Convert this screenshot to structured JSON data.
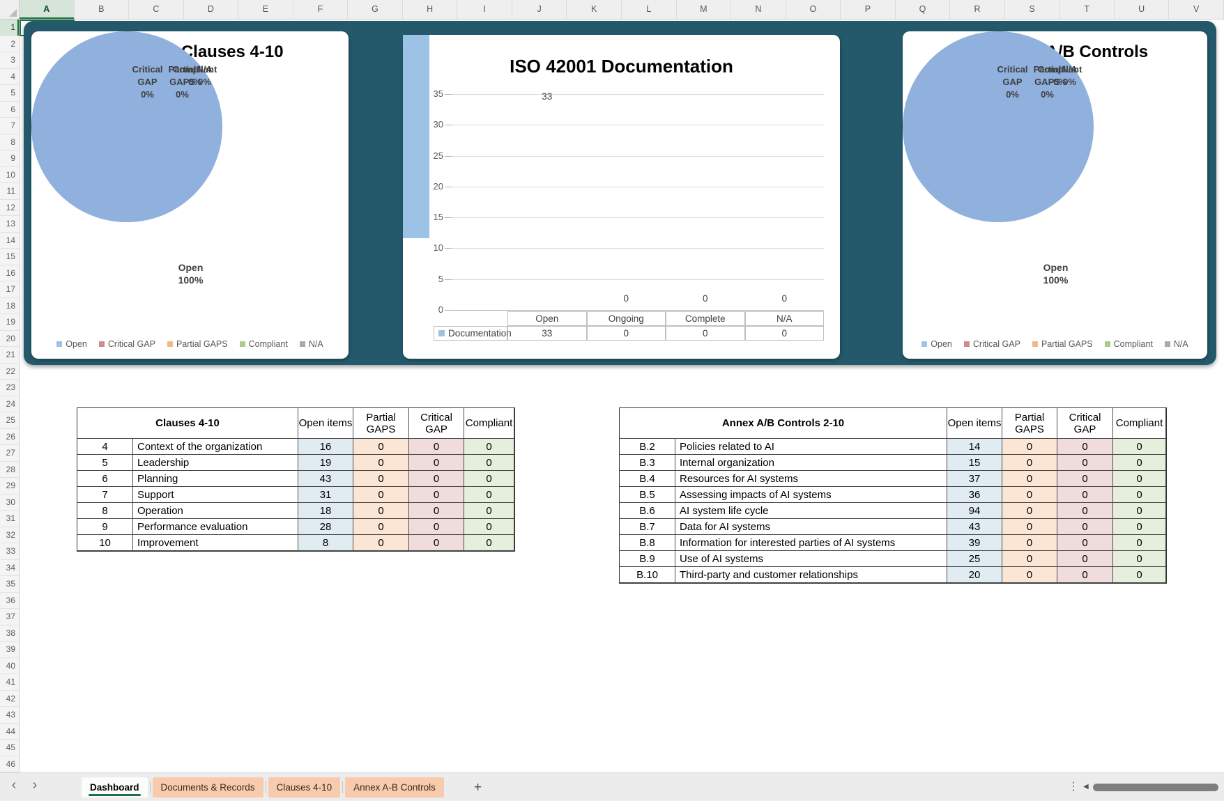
{
  "grid": {
    "column_letters": [
      "A",
      "B",
      "C",
      "D",
      "E",
      "F",
      "G",
      "H",
      "I",
      "J",
      "K",
      "L",
      "M",
      "N",
      "O",
      "P",
      "Q",
      "R",
      "S",
      "T",
      "U",
      "V"
    ],
    "visible_rows": 46,
    "selected_column": "A",
    "selected_row": "1",
    "selected_cell": "A1"
  },
  "chart_data": [
    {
      "type": "pie",
      "title": "ISO 42001 Clauses 4-10",
      "categories": [
        "Open",
        "Critical GAP",
        "Partial GAPS",
        "Compliant",
        "N/A"
      ],
      "values": [
        100,
        0,
        0,
        0,
        0
      ],
      "unit": "%",
      "legend_position": "bottom"
    },
    {
      "type": "bar",
      "title": "ISO 42001 Documentation",
      "categories": [
        "Open",
        "Ongoing",
        "Complete",
        "N/A"
      ],
      "series": [
        {
          "name": "Documentation",
          "values": [
            33,
            0,
            0,
            0
          ]
        }
      ],
      "ylim": [
        0,
        35
      ],
      "yticks": [
        0,
        5,
        10,
        15,
        20,
        25,
        30,
        35
      ],
      "grid": true,
      "show_data_table": true
    },
    {
      "type": "pie",
      "title": "ISO 42001 A/B Controls",
      "categories": [
        "Open",
        "Critical GAP",
        "Partial GAPS",
        "Compliant",
        "N/A"
      ],
      "values": [
        100,
        0,
        0,
        0,
        0
      ],
      "unit": "%",
      "legend_position": "bottom"
    }
  ],
  "pie_labels": {
    "critical": "Critical\nGAP\n0%",
    "partial": "Partial\nGAPS\n0%",
    "compliant": "Compliant\n0%",
    "na": "N/A\n0%",
    "open": "Open\n100%"
  },
  "legend": {
    "items": [
      {
        "label": "Open",
        "color": "#9DC3E6"
      },
      {
        "label": "Critical GAP",
        "color": "#D08C8C"
      },
      {
        "label": "Partial GAPS",
        "color": "#F0B985"
      },
      {
        "label": "Compliant",
        "color": "#AFC98A"
      },
      {
        "label": "N/A",
        "color": "#A9A9A9"
      }
    ]
  },
  "tables": {
    "clauses": {
      "title": "Clauses 4-10",
      "columns": [
        "Open items",
        "Partial GAPS",
        "Critical GAP",
        "Compliant"
      ],
      "rows": [
        [
          "4",
          "Context of the organization",
          "16",
          "0",
          "0",
          "0"
        ],
        [
          "5",
          "Leadership",
          "19",
          "0",
          "0",
          "0"
        ],
        [
          "6",
          "Planning",
          "43",
          "0",
          "0",
          "0"
        ],
        [
          "7",
          "Support",
          "31",
          "0",
          "0",
          "0"
        ],
        [
          "8",
          "Operation",
          "18",
          "0",
          "0",
          "0"
        ],
        [
          "9",
          "Performance evaluation",
          "28",
          "0",
          "0",
          "0"
        ],
        [
          "10",
          "Improvement",
          "8",
          "0",
          "0",
          "0"
        ]
      ]
    },
    "annex": {
      "title": "Annex A/B Controls 2-10",
      "columns": [
        "Open items",
        "Partial GAPS",
        "Critical GAP",
        "Compliant"
      ],
      "rows": [
        [
          "B.2",
          "Policies related to AI",
          "14",
          "0",
          "0",
          "0"
        ],
        [
          "B.3",
          "Internal organization",
          "15",
          "0",
          "0",
          "0"
        ],
        [
          "B.4",
          "Resources for AI systems",
          "37",
          "0",
          "0",
          "0"
        ],
        [
          "B.5",
          "Assessing impacts of AI systems",
          "36",
          "0",
          "0",
          "0"
        ],
        [
          "B.6",
          "AI system life cycle",
          "94",
          "0",
          "0",
          "0"
        ],
        [
          "B.7",
          "Data for AI systems",
          "43",
          "0",
          "0",
          "0"
        ],
        [
          "B.8",
          "Information for interested parties of AI systems",
          "39",
          "0",
          "0",
          "0"
        ],
        [
          "B.9",
          "Use of AI systems",
          "25",
          "0",
          "0",
          "0"
        ],
        [
          "B.10",
          "Third-party and customer relationships",
          "20",
          "0",
          "0",
          "0"
        ]
      ]
    }
  },
  "sheet_tabs": {
    "tabs": [
      "Dashboard",
      "Documents & Records",
      "Clauses 4-10",
      "Annex A-B Controls"
    ],
    "active_index": 0,
    "add_label": "+"
  },
  "icons": {
    "chevron_left": "‹",
    "chevron_right": "›",
    "add_sheet": "+",
    "more": "⋮",
    "scroll_left": "◀"
  },
  "colors": {
    "teal_panel": "#24596B",
    "pie_blue": "#90B0DE",
    "bar_blue": "#9CC2E6",
    "selection_green": "#1E7145",
    "tab_peach": "#F8CBAD",
    "fills": {
      "open": "#E0ECF2",
      "partial": "#FBE5D4",
      "critical": "#F0DBDD",
      "compliant": "#E6EEDC"
    },
    "chart_gridline": "#D9D9D9",
    "axis_text": "#595959"
  }
}
